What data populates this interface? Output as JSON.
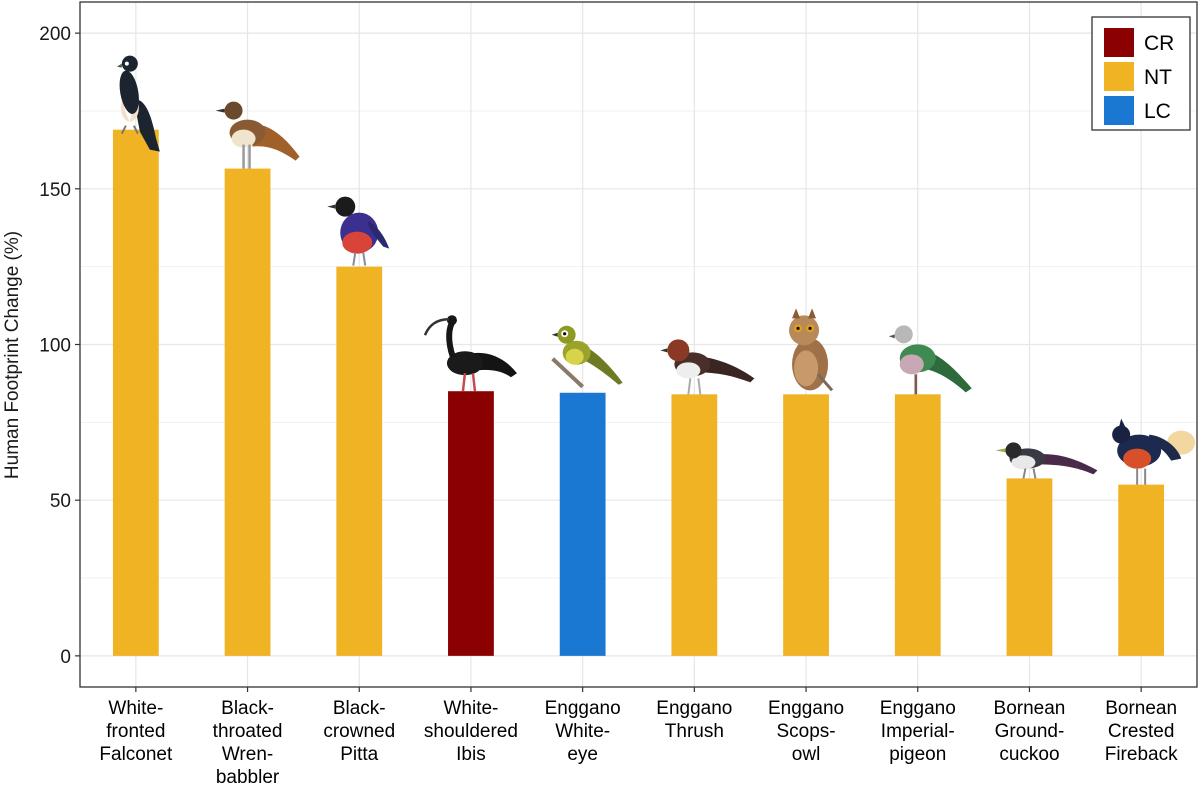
{
  "chart_data": {
    "type": "bar",
    "title": "",
    "xlabel": "",
    "ylabel": "Human Footprint Change (%)",
    "ylim": [
      -10,
      210
    ],
    "yticks": [
      0,
      50,
      100,
      150,
      200
    ],
    "grid": true,
    "categories": [
      "White-fronted Falconet",
      "Black-throated Wren-babbler",
      "Black-crowned Pitta",
      "White-shouldered Ibis",
      "Enggano White-eye",
      "Enggano Thrush",
      "Enggano Scops-owl",
      "Enggano Imperial-pigeon",
      "Bornean Ground-cuckoo",
      "Bornean Crested Fireback"
    ],
    "category_lines": [
      [
        "White-",
        "fronted",
        "Falconet"
      ],
      [
        "Black-",
        "throated",
        "Wren-",
        "babbler"
      ],
      [
        "Black-",
        "crowned",
        "Pitta"
      ],
      [
        "White-",
        "shouldered",
        "Ibis"
      ],
      [
        "Enggano",
        "White-",
        "eye"
      ],
      [
        "Enggano",
        "Thrush"
      ],
      [
        "Enggano",
        "Scops-",
        "owl"
      ],
      [
        "Enggano",
        "Imperial-",
        "pigeon"
      ],
      [
        "Bornean",
        "Ground-",
        "cuckoo"
      ],
      [
        "Bornean",
        "Crested",
        "Fireback"
      ]
    ],
    "values": [
      169,
      156.5,
      125,
      85,
      84.5,
      84,
      84,
      84,
      57,
      55
    ],
    "status": [
      "NT",
      "NT",
      "NT",
      "CR",
      "LC",
      "NT",
      "NT",
      "NT",
      "NT",
      "NT"
    ],
    "legend": {
      "position": "top-right",
      "entries": [
        {
          "label": "CR",
          "color": "#8B0000"
        },
        {
          "label": "NT",
          "color": "#EFB324"
        },
        {
          "label": "LC",
          "color": "#1B78D2"
        }
      ]
    },
    "bird_icons": [
      "falconet-icon",
      "wren-babbler-icon",
      "pitta-icon",
      "ibis-icon",
      "white-eye-icon",
      "thrush-icon",
      "scops-owl-icon",
      "imperial-pigeon-icon",
      "ground-cuckoo-icon",
      "fireback-icon"
    ]
  }
}
